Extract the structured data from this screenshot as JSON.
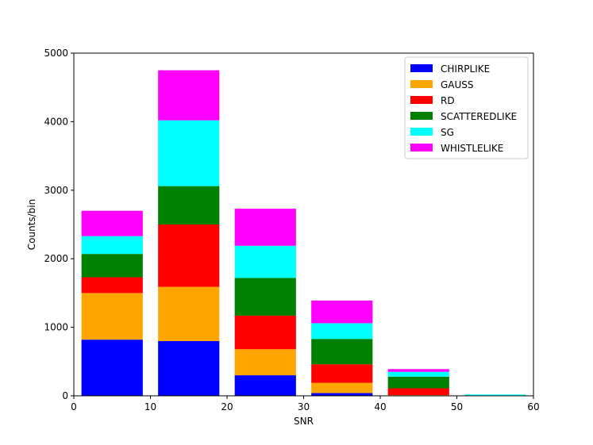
{
  "chart_data": {
    "type": "bar",
    "stacked": true,
    "xlabel": "SNR",
    "ylabel": "Counts/bin",
    "xlim": [
      0,
      60
    ],
    "ylim": [
      0,
      5000
    ],
    "xticks": [
      0,
      10,
      20,
      30,
      40,
      50,
      60
    ],
    "yticks": [
      0,
      1000,
      2000,
      3000,
      4000,
      5000
    ],
    "grid": false,
    "legend_position": "top-right",
    "bins": [
      [
        1,
        9
      ],
      [
        11,
        19
      ],
      [
        21,
        29
      ],
      [
        31,
        39
      ],
      [
        41,
        49
      ],
      [
        51,
        59
      ]
    ],
    "series": [
      {
        "name": "CHIRPLIKE",
        "color": "#0000ff",
        "values": [
          820,
          800,
          300,
          40,
          0,
          0
        ]
      },
      {
        "name": "GAUSS",
        "color": "#ffa500",
        "values": [
          680,
          790,
          380,
          150,
          10,
          0
        ]
      },
      {
        "name": "RD",
        "color": "#ff0000",
        "values": [
          230,
          910,
          490,
          270,
          100,
          0
        ]
      },
      {
        "name": "SCATTEREDLIKE",
        "color": "#008000",
        "values": [
          340,
          560,
          550,
          370,
          170,
          0
        ]
      },
      {
        "name": "SG",
        "color": "#00ffff",
        "values": [
          260,
          960,
          470,
          230,
          70,
          20
        ]
      },
      {
        "name": "WHISTLELIKE",
        "color": "#ff00ff",
        "values": [
          370,
          730,
          540,
          330,
          40,
          0
        ]
      }
    ]
  }
}
